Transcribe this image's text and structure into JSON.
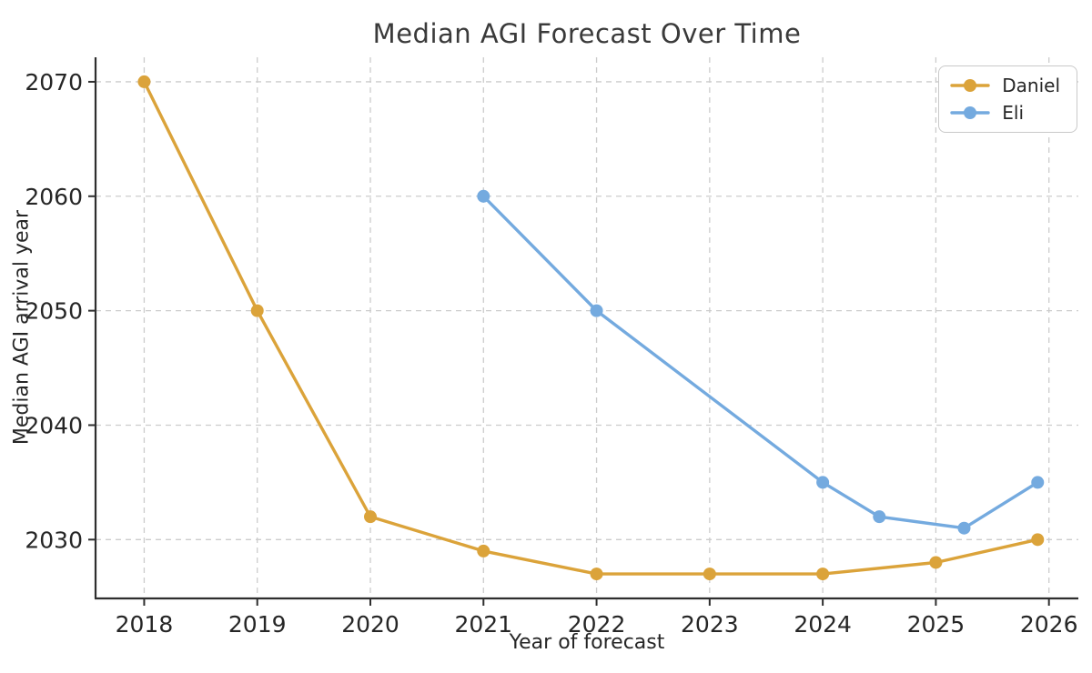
{
  "chart_data": {
    "type": "line",
    "title": "Median AGI Forecast Over Time",
    "xlabel": "Year of forecast",
    "ylabel": "Median AGI arrival year",
    "xlim": [
      2017.57,
      2026.26
    ],
    "ylim": [
      2024.86,
      2072.14
    ],
    "xticks": [
      2018,
      2019,
      2020,
      2021,
      2022,
      2023,
      2024,
      2025,
      2026
    ],
    "yticks": [
      2030,
      2040,
      2050,
      2060,
      2070
    ],
    "grid": true,
    "grid_style": "dashed",
    "legend_position": "upper right",
    "series": [
      {
        "name": "Daniel",
        "color": "#DBA33A",
        "x": [
          2018,
          2019,
          2020,
          2021,
          2022,
          2023,
          2024,
          2025,
          2025.9
        ],
        "y": [
          2070,
          2050,
          2032,
          2029,
          2027,
          2027,
          2027,
          2028,
          2030
        ]
      },
      {
        "name": "Eli",
        "color": "#74AADF",
        "x": [
          2021,
          2022,
          2024,
          2024.5,
          2025.25,
          2025.9
        ],
        "y": [
          2060,
          2050,
          2035,
          2032,
          2031,
          2035
        ]
      }
    ]
  },
  "colors": {
    "grid": "#cccccc",
    "spine": "#2e2e2e",
    "tick_text": "#262626",
    "title_text": "#3a3a3a",
    "background": "#ffffff"
  }
}
